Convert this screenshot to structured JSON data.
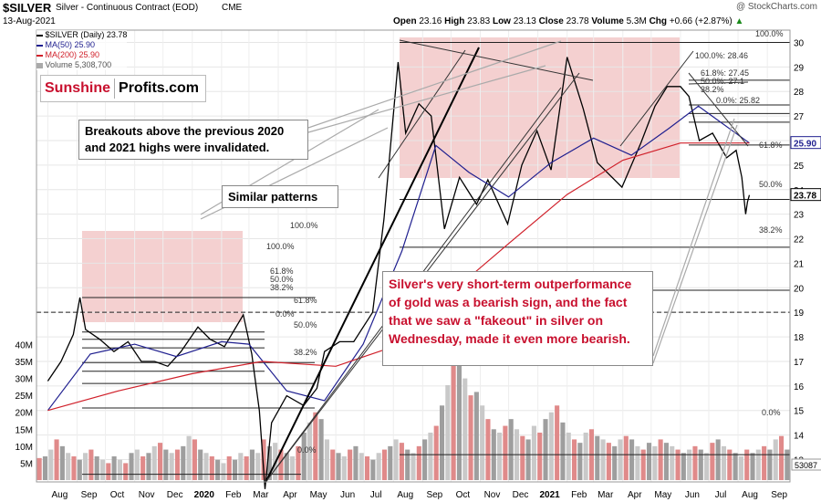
{
  "header": {
    "symbol": "$SILVER",
    "name": "Silver - Continuous Contract (EOD)",
    "exchange": "CME",
    "date": "13-Aug-2021",
    "watermark": "@ StockCharts.com",
    "open_label": "Open",
    "open": "23.16",
    "high_label": "High",
    "high": "23.83",
    "low_label": "Low",
    "low": "23.13",
    "close_label": "Close",
    "close": "23.78",
    "volume_label": "Volume",
    "volume": "5.3M",
    "chg_label": "Chg",
    "chg": "+0.66 (+2.87%)",
    "chg_arrow": "▲"
  },
  "legend": [
    {
      "text": "$SILVER (Daily) 23.78",
      "color": "#000000"
    },
    {
      "text": "MA(50) 25.90",
      "color": "#1f1f8f"
    },
    {
      "text": "MA(200) 25.90",
      "color": "#d0202a"
    },
    {
      "text": "Volume 5,308,700",
      "color": "#666666"
    }
  ],
  "logo": {
    "part1": "Sunshine",
    "part2": "Profits.com",
    "color1": "#c8102e",
    "color2": "#000000"
  },
  "callouts": {
    "breakouts": "Breakouts above the previous 2020 and 2021 highs were invalidated.",
    "patterns": "Similar patterns",
    "main": "Silver's very short-term outperformance of gold was a bearish sign, and the fact that we saw a \"fakeout\" in silver on Wednesday, made it even more bearish."
  },
  "fib_labels": {
    "top_100": "100.0%",
    "top_618_a": "61.8%",
    "top_382_a": "38.2%",
    "top_618": "61.8%",
    "top_50": "50.0%",
    "top_382": "38.2%",
    "top_0": "0.0%",
    "right_100": "100.0%: 28.46",
    "right_618": "61.8%: 27.45",
    "right_50": "50.0%: 27.1",
    "right_382": "38.2%",
    "right_0": "0.0%: 25.82",
    "left_100": "100.0%",
    "left_100b": "100.0%",
    "left_618": "61.8%",
    "left_50": "50.0%",
    "left_382": "38.2%",
    "left_618b": "61.8%",
    "left_0": "0.0%",
    "left_50b": "50.0%",
    "left_382b": "38.2%",
    "left_0b": "0.0%"
  },
  "chart_data": {
    "type": "line",
    "title": "$SILVER Silver - Continuous Contract (EOD)",
    "x_tick_labels": [
      "Aug",
      "Sep",
      "Oct",
      "Nov",
      "Dec",
      "2020",
      "Feb",
      "Mar",
      "Apr",
      "May",
      "Jun",
      "Jul",
      "Aug",
      "Sep",
      "Oct",
      "Nov",
      "Dec",
      "2021",
      "Feb",
      "Mar",
      "Apr",
      "May",
      "Jun",
      "Jul",
      "Aug",
      "Sep"
    ],
    "price_ticks": [
      13,
      14,
      15,
      16,
      17,
      18,
      19,
      20,
      21,
      22,
      23,
      24,
      25,
      26,
      27,
      28,
      29,
      30
    ],
    "volume_ticks": [
      "5M",
      "10M",
      "15M",
      "20M",
      "25M",
      "30M",
      "35M",
      "40M"
    ],
    "price_tags": [
      {
        "value": 25.9,
        "label": "25.90",
        "color": "#1f1f8f"
      },
      {
        "value": 23.78,
        "label": "23.78",
        "color": "#000000"
      }
    ],
    "volume_tag": "53087",
    "ylim": [
      12.2,
      30.5
    ],
    "series": [
      {
        "name": "$SILVER (Daily)",
        "color": "#000000",
        "points": [
          [
            "2019-08-01",
            16.2
          ],
          [
            "2019-08-15",
            17.0
          ],
          [
            "2019-08-28",
            18.1
          ],
          [
            "2019-09-04",
            19.6
          ],
          [
            "2019-09-10",
            18.3
          ],
          [
            "2019-09-25",
            17.9
          ],
          [
            "2019-10-10",
            17.4
          ],
          [
            "2019-10-25",
            17.8
          ],
          [
            "2019-11-08",
            17.0
          ],
          [
            "2019-11-22",
            17.0
          ],
          [
            "2019-12-06",
            16.8
          ],
          [
            "2019-12-20",
            17.4
          ],
          [
            "2020-01-07",
            18.4
          ],
          [
            "2020-01-20",
            17.9
          ],
          [
            "2020-02-04",
            17.6
          ],
          [
            "2020-02-24",
            18.9
          ],
          [
            "2020-03-04",
            17.3
          ],
          [
            "2020-03-12",
            15.0
          ],
          [
            "2020-03-18",
            11.8
          ],
          [
            "2020-03-25",
            14.5
          ],
          [
            "2020-04-10",
            15.6
          ],
          [
            "2020-04-28",
            15.2
          ],
          [
            "2020-05-12",
            15.9
          ],
          [
            "2020-05-20",
            17.4
          ],
          [
            "2020-06-05",
            17.8
          ],
          [
            "2020-06-20",
            17.8
          ],
          [
            "2020-07-10",
            19.0
          ],
          [
            "2020-07-22",
            22.8
          ],
          [
            "2020-08-06",
            29.2
          ],
          [
            "2020-08-14",
            26.3
          ],
          [
            "2020-08-28",
            27.5
          ],
          [
            "2020-09-10",
            27.0
          ],
          [
            "2020-09-24",
            22.4
          ],
          [
            "2020-10-10",
            24.5
          ],
          [
            "2020-10-28",
            23.4
          ],
          [
            "2020-11-09",
            24.4
          ],
          [
            "2020-11-30",
            22.6
          ],
          [
            "2020-12-15",
            25.0
          ],
          [
            "2020-12-31",
            26.4
          ],
          [
            "2021-01-15",
            24.8
          ],
          [
            "2021-02-01",
            29.4
          ],
          [
            "2021-02-18",
            27.3
          ],
          [
            "2021-03-05",
            25.1
          ],
          [
            "2021-03-31",
            24.1
          ],
          [
            "2021-04-20",
            25.9
          ],
          [
            "2021-05-05",
            27.4
          ],
          [
            "2021-05-18",
            28.2
          ],
          [
            "2021-06-01",
            28.2
          ],
          [
            "2021-06-10",
            27.8
          ],
          [
            "2021-06-21",
            26.0
          ],
          [
            "2021-07-05",
            26.3
          ],
          [
            "2021-07-20",
            25.3
          ],
          [
            "2021-07-30",
            25.6
          ],
          [
            "2021-08-05",
            24.5
          ],
          [
            "2021-08-09",
            23.0
          ],
          [
            "2021-08-11",
            23.5
          ],
          [
            "2021-08-13",
            23.78
          ]
        ]
      },
      {
        "name": "MA(50)",
        "color": "#1f1f8f",
        "points": [
          [
            "2019-08-01",
            15.0
          ],
          [
            "2019-09-15",
            17.3
          ],
          [
            "2019-11-01",
            17.7
          ],
          [
            "2019-12-15",
            17.2
          ],
          [
            "2020-02-01",
            17.8
          ],
          [
            "2020-03-01",
            17.7
          ],
          [
            "2020-04-10",
            15.8
          ],
          [
            "2020-05-20",
            15.4
          ],
          [
            "2020-06-30",
            17.7
          ],
          [
            "2020-08-10",
            21.5
          ],
          [
            "2020-09-15",
            25.8
          ],
          [
            "2020-10-20",
            24.7
          ],
          [
            "2020-12-01",
            23.7
          ],
          [
            "2021-01-15",
            25.1
          ],
          [
            "2021-03-01",
            26.1
          ],
          [
            "2021-04-10",
            25.4
          ],
          [
            "2021-05-20",
            26.5
          ],
          [
            "2021-06-20",
            27.4
          ],
          [
            "2021-08-13",
            25.9
          ]
        ]
      },
      {
        "name": "MA(200)",
        "color": "#d0202a",
        "points": [
          [
            "2019-08-01",
            15.0
          ],
          [
            "2019-10-15",
            15.8
          ],
          [
            "2020-01-01",
            16.5
          ],
          [
            "2020-03-15",
            17.0
          ],
          [
            "2020-06-01",
            16.8
          ],
          [
            "2020-08-01",
            17.6
          ],
          [
            "2020-10-01",
            19.8
          ],
          [
            "2020-12-01",
            21.8
          ],
          [
            "2021-02-01",
            23.8
          ],
          [
            "2021-04-01",
            25.2
          ],
          [
            "2021-06-01",
            25.9
          ],
          [
            "2021-08-13",
            25.9
          ]
        ]
      }
    ],
    "volume": [
      6.5,
      7,
      9,
      12,
      10,
      8,
      7,
      6,
      8,
      9,
      7,
      6,
      5,
      7,
      6,
      5,
      8,
      9,
      7,
      8,
      10,
      11,
      9,
      8,
      9,
      10,
      13,
      12,
      9,
      8,
      7,
      6,
      5,
      7,
      6,
      8,
      7,
      9,
      8,
      12,
      10,
      11,
      9,
      8,
      7,
      10,
      14,
      17,
      20,
      18,
      12,
      9,
      8,
      7,
      9,
      10,
      8,
      7,
      6,
      8,
      9,
      10,
      12,
      11,
      9,
      8,
      10,
      12,
      14,
      16,
      22,
      28,
      38,
      45,
      30,
      25,
      26,
      22,
      18,
      15,
      14,
      16,
      18,
      15,
      13,
      12,
      16,
      14,
      18,
      20,
      22,
      17,
      14,
      12,
      11,
      14,
      15,
      13,
      12,
      11,
      10,
      12,
      13,
      12,
      10,
      9,
      11,
      10,
      12,
      11,
      10,
      9,
      8,
      9,
      10,
      9,
      8,
      11,
      12,
      10,
      9,
      8,
      7,
      9,
      8,
      9,
      10,
      9,
      12,
      13,
      9
    ]
  }
}
